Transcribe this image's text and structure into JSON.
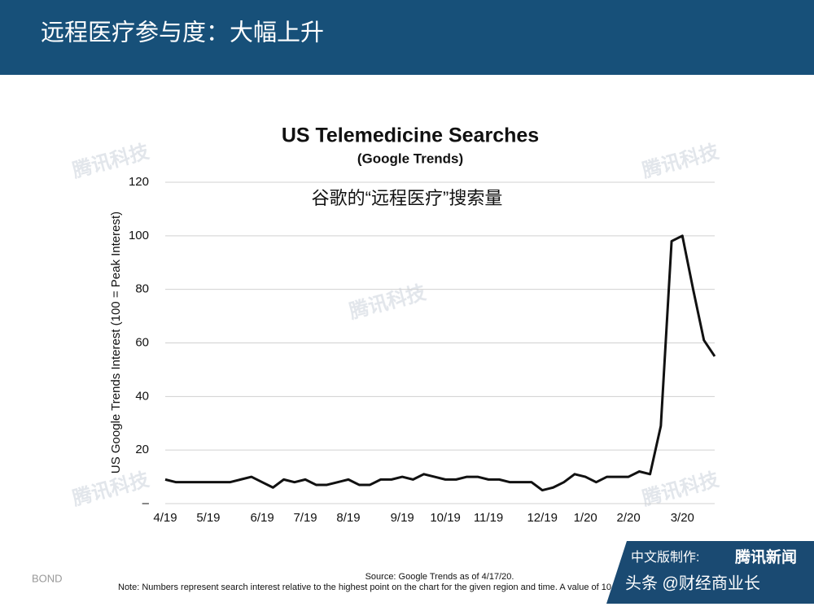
{
  "header": {
    "title": "远程医疗参与度：大幅上升"
  },
  "chart_data": {
    "type": "line",
    "title": "US Telemedicine Searches",
    "subtitle": "(Google Trends)",
    "annotation": "谷歌的“远程医疗”搜索量",
    "y_label": "US Google Trends Interest (100 = Peak Interest)",
    "categories": [
      "4/19",
      null,
      null,
      null,
      "5/19",
      null,
      null,
      null,
      null,
      "6/19",
      null,
      null,
      null,
      "7/19",
      null,
      null,
      null,
      "8/19",
      null,
      null,
      null,
      null,
      "9/19",
      null,
      null,
      null,
      "10/19",
      null,
      null,
      null,
      "11/19",
      null,
      null,
      null,
      null,
      "12/19",
      null,
      null,
      null,
      "1/20",
      null,
      null,
      null,
      "2/20",
      null,
      null,
      null,
      null,
      "3/20",
      null,
      null,
      null
    ],
    "values": [
      9,
      8,
      8,
      8,
      8,
      8,
      8,
      9,
      10,
      8,
      6,
      9,
      8,
      9,
      7,
      7,
      8,
      9,
      7,
      7,
      9,
      9,
      10,
      9,
      11,
      10,
      9,
      9,
      10,
      10,
      9,
      9,
      8,
      8,
      8,
      5,
      6,
      8,
      11,
      10,
      8,
      10,
      10,
      10,
      12,
      11,
      29,
      98,
      100,
      80,
      61,
      55
    ],
    "color": "#111111",
    "ylim": [
      0,
      120
    ],
    "yticks": [
      {
        "value": 0,
        "label": "–"
      },
      20,
      40,
      60,
      80,
      100,
      120
    ],
    "grid": true
  },
  "footer": {
    "source": "Source: Google Trends as of 4/17/20.",
    "note": "Note: Numbers represent search interest relative to the highest point on the chart for the given region and time. A value of 10",
    "brand": "BOND"
  },
  "badge": {
    "made_by": "中文版制作:",
    "org": "腾讯新闻",
    "account": "头条 @财经商业长"
  },
  "watermark": "腾讯科技"
}
